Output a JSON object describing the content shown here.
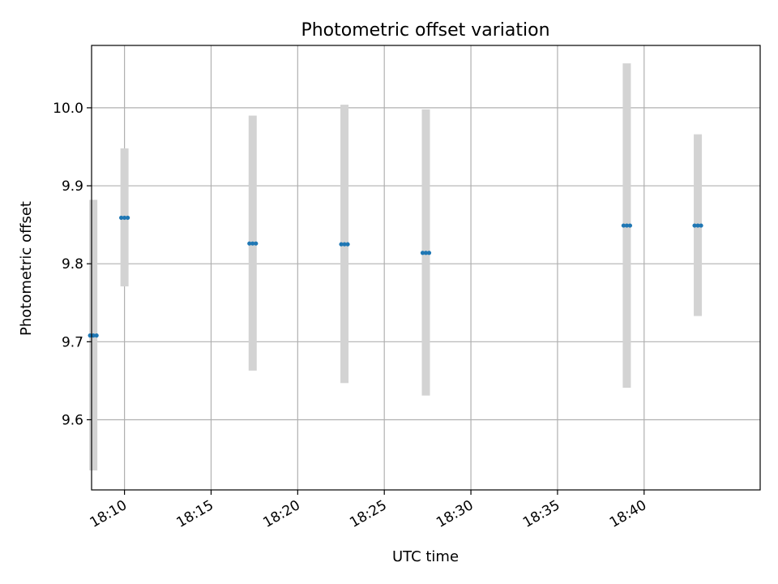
{
  "chart_data": {
    "type": "scatter",
    "title": "Photometric offset variation",
    "xlabel": "UTC time",
    "ylabel": "Photometric offset",
    "x_ticks": [
      "18:10",
      "18:15",
      "18:20",
      "18:25",
      "18:30",
      "18:35",
      "18:40"
    ],
    "y_ticks": [
      "9.6",
      "9.7",
      "9.8",
      "9.9",
      "10.0"
    ],
    "xlim": [
      "18:08:06",
      "18:46:42"
    ],
    "ylim": [
      9.51,
      10.08
    ],
    "grid": true,
    "points": [
      {
        "x": "18:08:12",
        "y": 9.708,
        "err_low": 9.535,
        "err_high": 9.882
      },
      {
        "x": "18:10:00",
        "y": 9.859,
        "err_low": 9.771,
        "err_high": 9.948
      },
      {
        "x": "18:17:24",
        "y": 9.826,
        "err_low": 9.663,
        "err_high": 9.99
      },
      {
        "x": "18:22:42",
        "y": 9.825,
        "err_low": 9.647,
        "err_high": 10.004
      },
      {
        "x": "18:27:24",
        "y": 9.814,
        "err_low": 9.631,
        "err_high": 9.998
      },
      {
        "x": "18:39:00",
        "y": 9.849,
        "err_low": 9.641,
        "err_high": 10.057
      },
      {
        "x": "18:43:06",
        "y": 9.849,
        "err_low": 9.733,
        "err_high": 9.966
      }
    ],
    "colors": {
      "marker": "#1f77b4",
      "errorbar": "#d3d3d3",
      "grid": "#b0b0b0",
      "axes": "#000000"
    }
  }
}
